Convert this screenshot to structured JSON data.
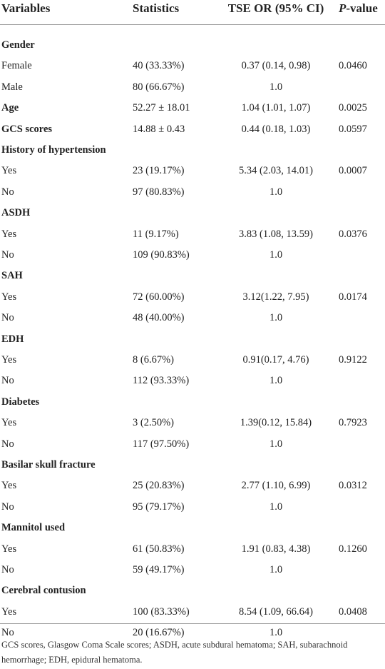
{
  "table": {
    "header": [
      "Variables",
      "Statistics",
      "TSE OR (95% CI)",
      {
        "italic": "P",
        "text": "-value"
      }
    ],
    "rows": [
      {
        "label": "Gender",
        "levels": [
          {
            "label": "Female",
            "statistics": "40 (33.33%)",
            "or": "0.37 (0.14, 0.98)",
            "p": "0.0460"
          },
          {
            "label": "Male",
            "statistics": "80 (66.67%)",
            "or": "1.0"
          }
        ]
      },
      {
        "label": "Age",
        "statistics": "52.27 ± 18.01",
        "or": "1.04 (1.01, 1.07)",
        "p": "0.0025"
      },
      {
        "label": "GCS scores",
        "statistics": "14.88 ± 0.43",
        "or": "0.44 (0.18, 1.03)",
        "p": "0.0597"
      },
      {
        "label": "History of hypertension",
        "levels": [
          {
            "label": "Yes",
            "statistics": "23 (19.17%)",
            "or": "5.34 (2.03, 14.01)",
            "p": "0.0007"
          },
          {
            "label": "No",
            "statistics": "97 (80.83%)",
            "or": "1.0"
          }
        ]
      },
      {
        "label": "ASDH",
        "levels": [
          {
            "label": "Yes",
            "statistics": "11 (9.17%)",
            "or": "3.83 (1.08, 13.59)",
            "p": "0.0376"
          },
          {
            "label": "No",
            "statistics": "109 (90.83%)",
            "or": "1.0"
          }
        ]
      },
      {
        "label": "SAH",
        "levels": [
          {
            "label": "Yes",
            "statistics": "72 (60.00%)",
            "or": "3.12(1.22, 7.95)",
            "p": "0.0174"
          },
          {
            "label": "No",
            "statistics": "48 (40.00%)",
            "or": "1.0"
          }
        ]
      },
      {
        "label": "EDH",
        "levels": [
          {
            "label": "Yes",
            "statistics": "8 (6.67%)",
            "or": "0.91(0.17, 4.76)",
            "p": "0.9122"
          },
          {
            "label": "No",
            "statistics": "112 (93.33%)",
            "or": "1.0"
          }
        ]
      },
      {
        "label": "Diabetes",
        "levels": [
          {
            "label": "Yes",
            "statistics": "3 (2.50%)",
            "or": "1.39(0.12, 15.84)",
            "p": "0.7923"
          },
          {
            "label": "No",
            "statistics": "117 (97.50%)",
            "or": "1.0"
          }
        ]
      },
      {
        "label": "Basilar skull fracture",
        "levels": [
          {
            "label": "Yes",
            "statistics": "25 (20.83%)",
            "or": "2.77 (1.10, 6.99)",
            "p": "0.0312"
          },
          {
            "label": "No",
            "statistics": "95 (79.17%)",
            "or": "1.0"
          }
        ]
      },
      {
        "label": "Mannitol used",
        "levels": [
          {
            "label": "Yes",
            "statistics": "61 (50.83%)",
            "or": "1.91 (0.83, 4.38)",
            "p": "0.1260"
          },
          {
            "label": "No",
            "statistics": "59 (49.17%)",
            "or": "1.0"
          }
        ]
      },
      {
        "label": "Cerebral contusion",
        "levels": [
          {
            "label": "Yes",
            "statistics": "100 (83.33%)",
            "or": "8.54 (1.09, 66.64)",
            "p": "0.0408"
          },
          {
            "label": "No",
            "statistics": "20 (16.67%)",
            "or": "1.0"
          }
        ]
      }
    ],
    "footnote": "GCS scores, Glasgow Coma Scale scores; ASDH, acute subdural hematoma; SAH, subarachnoid hemorrhage; EDH, epidural hematoma."
  }
}
